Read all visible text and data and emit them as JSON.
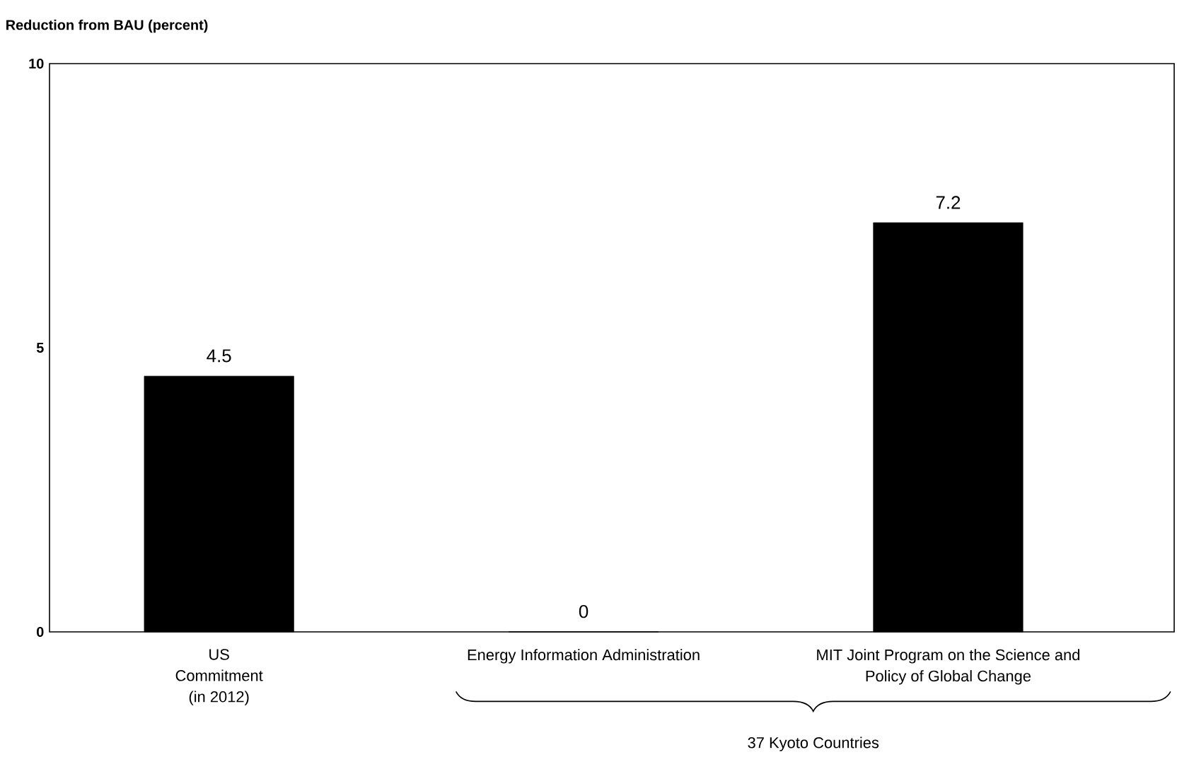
{
  "chart_data": {
    "type": "bar",
    "ylabel": "Reduction from BAU (percent)",
    "categories": [
      "US Commitment (in 2012)",
      "Energy Information Administration",
      "MIT Joint Program on the Science and Policy of Global Change"
    ],
    "values": [
      4.5,
      0,
      7.2
    ],
    "color": "#000000",
    "ylim": [
      0,
      10
    ],
    "yticks": [
      0,
      5,
      10
    ],
    "data_labels": true,
    "annotations": [
      "37 Kyoto Countries"
    ]
  }
}
